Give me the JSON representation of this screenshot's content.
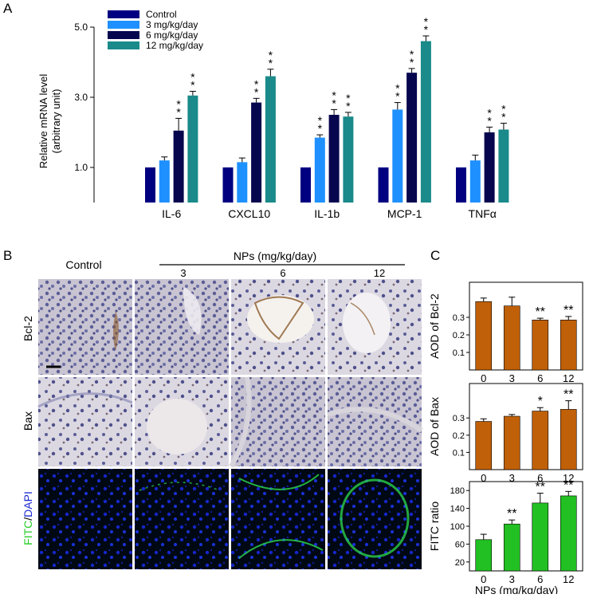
{
  "panel_labels": {
    "a": "A",
    "b": "B",
    "c": "C"
  },
  "chart_data": [
    {
      "panel": "A",
      "type": "bar",
      "ylabel_line1": "Relative mRNA level",
      "ylabel_line2": "(arbitrary unit)",
      "ylim": [
        0,
        5.0
      ],
      "yticks": [
        "1.0",
        "3.0",
        "5.0"
      ],
      "ytick_values": [
        1.0,
        3.0,
        5.0
      ],
      "categories": [
        "IL-6",
        "CXCL10",
        "IL-1b",
        "MCP-1",
        "TNFα"
      ],
      "series": [
        {
          "name": "Control",
          "color": "#000080",
          "values": [
            1.0,
            1.0,
            1.0,
            1.0,
            1.0
          ],
          "errors": [
            0,
            0,
            0,
            0,
            0
          ],
          "sig": [
            "",
            "",
            "",
            "",
            ""
          ]
        },
        {
          "name": "3 mg/kg/day",
          "color": "#1e90ff",
          "values": [
            1.2,
            1.15,
            1.85,
            2.65,
            1.2
          ],
          "errors": [
            0.1,
            0.12,
            0.08,
            0.2,
            0.15
          ],
          "sig": [
            "",
            "",
            "**",
            "**",
            ""
          ]
        },
        {
          "name": "6 mg/kg/day",
          "color": "#06064e",
          "values": [
            2.05,
            2.85,
            2.5,
            3.7,
            2.0
          ],
          "errors": [
            0.35,
            0.12,
            0.15,
            0.12,
            0.15
          ],
          "sig": [
            "**",
            "**",
            "**",
            "**",
            "**"
          ]
        },
        {
          "name": "12 mg/kg/day",
          "color": "#1a8a8a",
          "values": [
            3.05,
            3.6,
            2.45,
            4.6,
            2.08
          ],
          "errors": [
            0.12,
            0.2,
            0.12,
            0.15,
            0.18
          ],
          "sig": [
            "**",
            "**",
            "**",
            "**",
            "**"
          ]
        }
      ]
    },
    {
      "panel": "C1",
      "type": "bar",
      "ylabel": "AOD of Bcl-2",
      "ylim": [
        0,
        0.5
      ],
      "yticks": [
        "0.1",
        "0.2",
        "0.3"
      ],
      "ytick_values": [
        0.1,
        0.2,
        0.3
      ],
      "categories": [
        "0",
        "3",
        "6",
        "12"
      ],
      "color": "#c06008",
      "values": [
        0.39,
        0.365,
        0.285,
        0.285
      ],
      "errors": [
        0.02,
        0.05,
        0.01,
        0.02
      ],
      "sig": [
        "",
        "",
        "**",
        "**"
      ]
    },
    {
      "panel": "C2",
      "type": "bar",
      "ylabel": "AOD of Bax",
      "ylim": [
        0,
        0.5
      ],
      "yticks": [
        "0.1",
        "0.2",
        "0.3"
      ],
      "ytick_values": [
        0.1,
        0.2,
        0.3
      ],
      "categories": [
        "0",
        "3",
        "6",
        "12"
      ],
      "color": "#c06008",
      "values": [
        0.28,
        0.31,
        0.34,
        0.35
      ],
      "errors": [
        0.015,
        0.01,
        0.02,
        0.05
      ],
      "sig": [
        "",
        "",
        "*",
        "**"
      ]
    },
    {
      "panel": "C3",
      "type": "bar",
      "ylabel": "FITC ratio",
      "xlabel": "NPs (mg/kg/day)",
      "ylim": [
        0,
        200
      ],
      "yticks": [
        "20",
        "60",
        "100",
        "140",
        "180"
      ],
      "ytick_values": [
        20,
        60,
        100,
        140,
        180
      ],
      "categories": [
        "0",
        "3",
        "6",
        "12"
      ],
      "color": "#22c022",
      "values": [
        70,
        105,
        152,
        168
      ],
      "errors": [
        12,
        9,
        22,
        10
      ],
      "sig": [
        "",
        "**",
        "**",
        "**"
      ]
    }
  ],
  "micrographs": {
    "col_labels": [
      "Control",
      "3",
      "6",
      "12"
    ],
    "nps_label": "NPs (mg/kg/day)",
    "row_labels": [
      "Bcl-2",
      "Bax"
    ],
    "fitc_label": "FITC",
    "slash": "/",
    "dapi_label": "DAPI",
    "stain_colors": {
      "ihc_bg": "#c9c4d2",
      "ihc_cell": "#5a5d96",
      "brown": "#8a5a2a",
      "fluor_bg": "#000814",
      "dapi": "#1626c8",
      "fitc": "#2ad04a"
    }
  }
}
